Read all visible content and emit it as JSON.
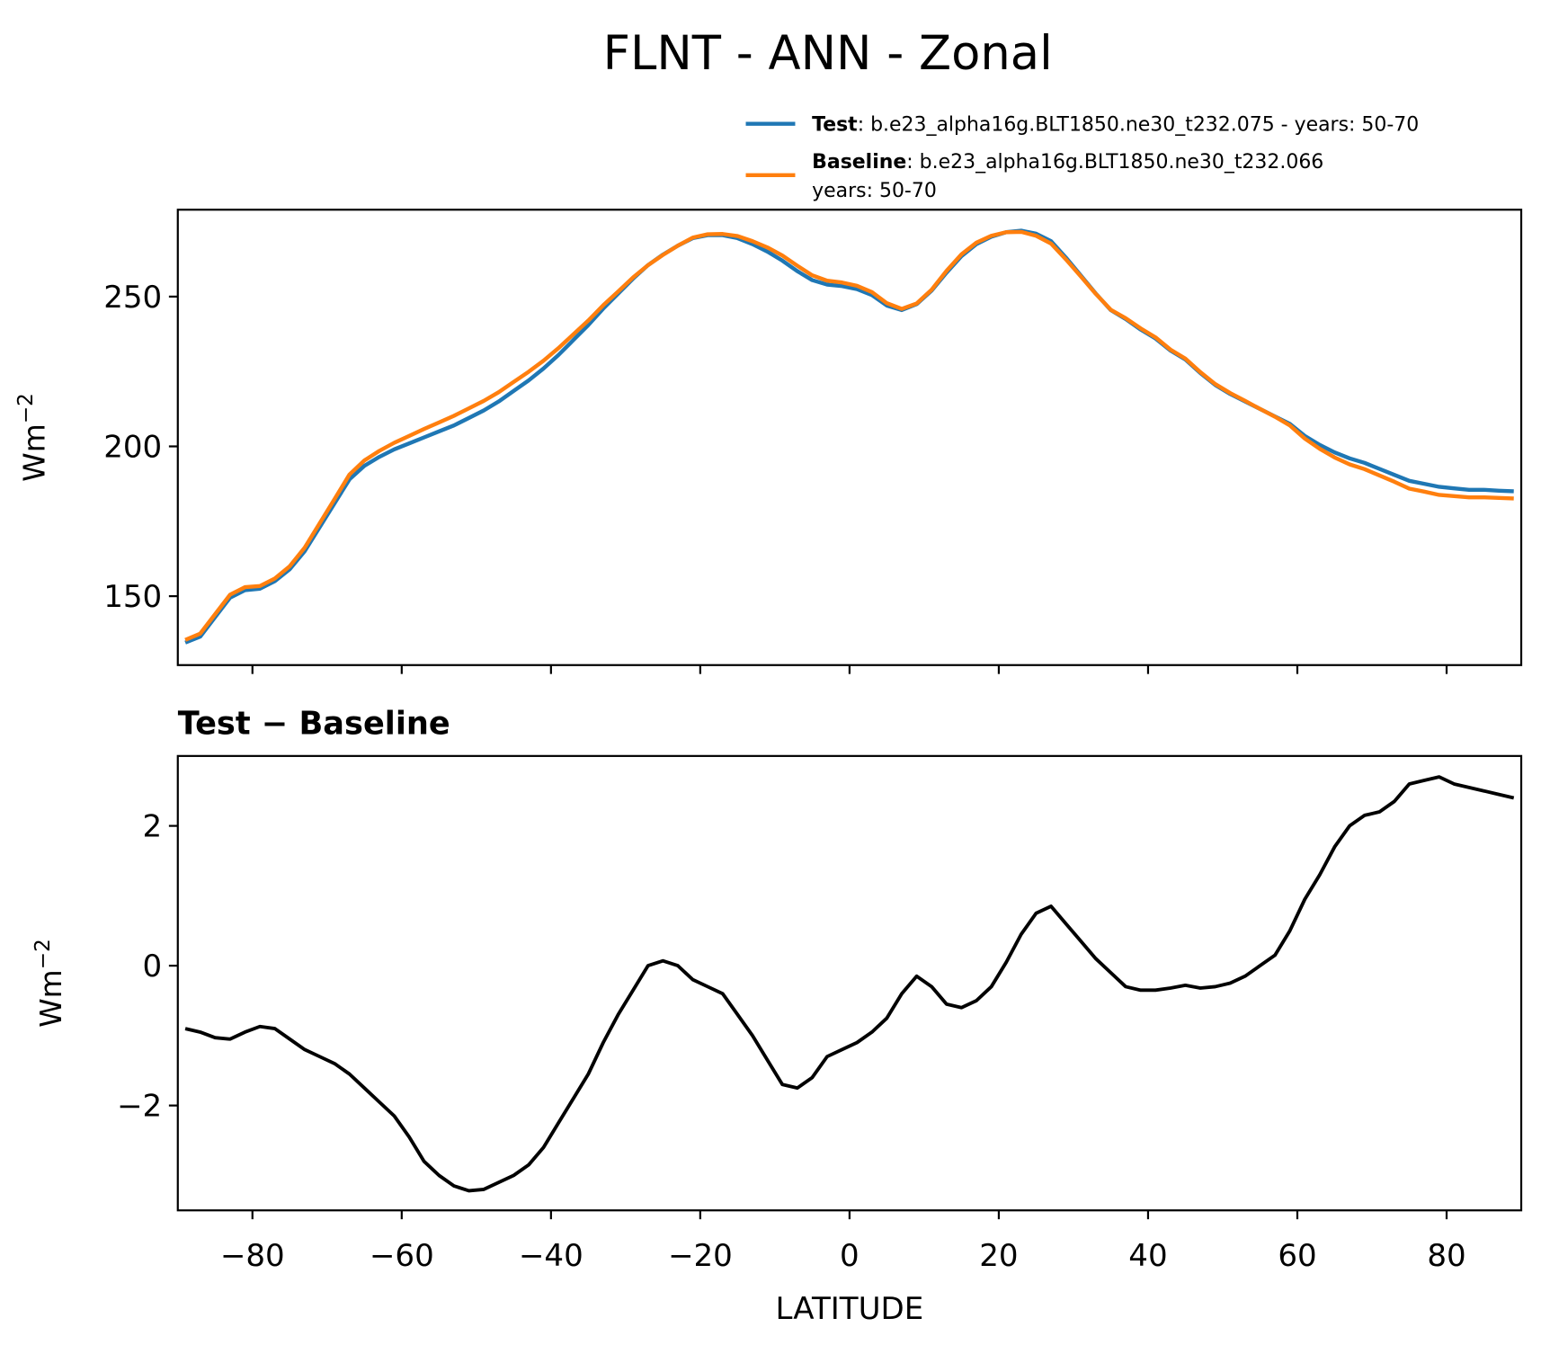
{
  "title": "FLNT - ANN - Zonal",
  "chart_data": [
    {
      "type": "line",
      "ylabel": "Wm",
      "ylabel_sup": "−2",
      "x": [
        -89,
        -87,
        -85,
        -83,
        -81,
        -79,
        -77,
        -75,
        -73,
        -71,
        -69,
        -67,
        -65,
        -63,
        -61,
        -59,
        -57,
        -55,
        -53,
        -51,
        -49,
        -47,
        -45,
        -43,
        -41,
        -39,
        -37,
        -35,
        -33,
        -31,
        -29,
        -27,
        -25,
        -23,
        -21,
        -19,
        -17,
        -15,
        -13,
        -11,
        -9,
        -7,
        -5,
        -3,
        -1,
        1,
        3,
        5,
        7,
        9,
        11,
        13,
        15,
        17,
        19,
        21,
        23,
        25,
        27,
        29,
        31,
        33,
        35,
        37,
        39,
        41,
        43,
        45,
        47,
        49,
        51,
        53,
        55,
        57,
        59,
        61,
        63,
        65,
        67,
        69,
        71,
        73,
        75,
        77,
        79,
        81,
        83,
        85,
        87,
        89
      ],
      "series": [
        {
          "name": "Test",
          "label_lines": [
            ": b.e23_alpha16g.BLT1850.ne30_t232.075 - years: 50-70"
          ],
          "color": "#1f77b4",
          "values": [
            134.5,
            136.5,
            143,
            149.5,
            152,
            152.5,
            155,
            159,
            165,
            173,
            181,
            189,
            193.5,
            196.5,
            199,
            201,
            203,
            205,
            207,
            209.5,
            212,
            215,
            218.5,
            222,
            226,
            230.5,
            235.5,
            240.5,
            246,
            251,
            256,
            260.5,
            264,
            267,
            269.5,
            270.5,
            270.5,
            269.5,
            267.5,
            265,
            262,
            258.5,
            255.5,
            254,
            253.5,
            252.5,
            250.5,
            247,
            245.5,
            247.5,
            252,
            258,
            263.5,
            267.5,
            270,
            271.5,
            272,
            271,
            268.5,
            263,
            257,
            251,
            245.5,
            242.5,
            239,
            236,
            232,
            229,
            224.5,
            220.5,
            217.5,
            215,
            212.5,
            210,
            207.5,
            203.5,
            200.5,
            198,
            196,
            194.5,
            192.5,
            190.5,
            188.5,
            187.5,
            186.5,
            186,
            185.5,
            185.5,
            185.2,
            185
          ]
        },
        {
          "name": "Baseline",
          "label_lines": [
            ": b.e23_alpha16g.BLT1850.ne30_t232.066",
            "years: 50-70"
          ],
          "color": "#ff7f0e",
          "values": [
            135.4,
            137.5,
            144,
            150.5,
            153,
            153.4,
            155.9,
            160,
            166.2,
            174.3,
            182.4,
            190.6,
            195.3,
            198.5,
            201.2,
            203.5,
            205.8,
            208,
            210.2,
            212.7,
            215.2,
            218.1,
            221.5,
            224.9,
            228.6,
            232.8,
            237.4,
            242,
            247.1,
            251.7,
            256.4,
            260.5,
            263.9,
            267,
            269.7,
            270.8,
            270.9,
            270.2,
            268.5,
            266.4,
            263.7,
            260.3,
            257.1,
            255.3,
            254.7,
            253.6,
            251.5,
            247.8,
            245.9,
            247.7,
            252.3,
            258.6,
            264.1,
            268,
            270.3,
            271.5,
            271.6,
            270.3,
            267.7,
            262.4,
            256.7,
            250.9,
            245.6,
            242.8,
            239.4,
            236.4,
            232.3,
            229.3,
            224.8,
            220.8,
            217.8,
            215.2,
            212.5,
            209.9,
            207,
            202.6,
            199.2,
            196.3,
            194,
            192.4,
            190.3,
            188.2,
            185.9,
            184.9,
            183.8,
            183.4,
            183,
            183,
            182.8,
            182.6
          ]
        }
      ],
      "xlim": [
        -90,
        90
      ],
      "xticks": [
        -80,
        -60,
        -40,
        -20,
        0,
        20,
        40,
        60,
        80
      ],
      "ylim": [
        127,
        279
      ],
      "yticks": [
        150,
        200,
        250
      ]
    },
    {
      "type": "line",
      "title": "Test − Baseline",
      "ylabel": "Wm",
      "ylabel_sup": "−2",
      "xlabel": "LATITUDE",
      "x": [
        -89,
        -87,
        -85,
        -83,
        -81,
        -79,
        -77,
        -75,
        -73,
        -71,
        -69,
        -67,
        -65,
        -63,
        -61,
        -59,
        -57,
        -55,
        -53,
        -51,
        -49,
        -47,
        -45,
        -43,
        -41,
        -39,
        -37,
        -35,
        -33,
        -31,
        -29,
        -27,
        -25,
        -23,
        -21,
        -19,
        -17,
        -15,
        -13,
        -11,
        -9,
        -7,
        -5,
        -3,
        -1,
        1,
        3,
        5,
        7,
        9,
        11,
        13,
        15,
        17,
        19,
        21,
        23,
        25,
        27,
        29,
        31,
        33,
        35,
        37,
        39,
        41,
        43,
        45,
        47,
        49,
        51,
        53,
        55,
        57,
        59,
        61,
        63,
        65,
        67,
        69,
        71,
        73,
        75,
        77,
        79,
        81,
        83,
        85,
        87,
        89
      ],
      "series": [
        {
          "color": "#000000",
          "values": [
            -0.9,
            -0.95,
            -1.03,
            -1.05,
            -0.95,
            -0.87,
            -0.9,
            -1.05,
            -1.2,
            -1.3,
            -1.4,
            -1.55,
            -1.75,
            -1.95,
            -2.15,
            -2.45,
            -2.8,
            -3.0,
            -3.15,
            -3.22,
            -3.2,
            -3.1,
            -3.0,
            -2.85,
            -2.6,
            -2.25,
            -1.9,
            -1.55,
            -1.1,
            -0.7,
            -0.35,
            0.0,
            0.07,
            0.0,
            -0.2,
            -0.3,
            -0.4,
            -0.7,
            -1.0,
            -1.35,
            -1.7,
            -1.75,
            -1.6,
            -1.3,
            -1.2,
            -1.1,
            -0.95,
            -0.75,
            -0.4,
            -0.15,
            -0.3,
            -0.55,
            -0.6,
            -0.5,
            -0.3,
            0.05,
            0.45,
            0.75,
            0.85,
            0.6,
            0.35,
            0.1,
            -0.1,
            -0.3,
            -0.35,
            -0.35,
            -0.32,
            -0.28,
            -0.32,
            -0.3,
            -0.25,
            -0.15,
            0.0,
            0.15,
            0.5,
            0.95,
            1.3,
            1.7,
            2.0,
            2.15,
            2.2,
            2.35,
            2.6,
            2.65,
            2.7,
            2.6,
            2.55,
            2.5,
            2.45,
            2.4
          ]
        }
      ],
      "xlim": [
        -90,
        90
      ],
      "xticks": [
        {
          "value": -80,
          "label": "−80"
        },
        {
          "value": -60,
          "label": "−60"
        },
        {
          "value": -40,
          "label": "−40"
        },
        {
          "value": -20,
          "label": "−20"
        },
        0,
        20,
        40,
        60,
        80
      ],
      "ylim": [
        -3.5,
        3.0
      ],
      "yticks": [
        {
          "value": -2,
          "label": "−2"
        },
        0,
        2
      ]
    }
  ]
}
